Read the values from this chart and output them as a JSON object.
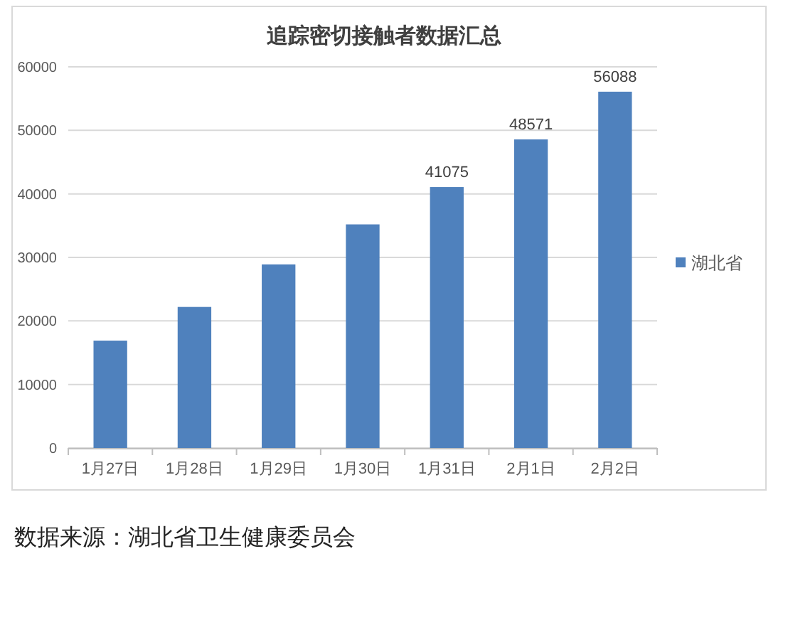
{
  "chart_data": {
    "type": "bar",
    "title": "追踪密切接触者数据汇总",
    "categories": [
      "1月27日",
      "1月28日",
      "1月29日",
      "1月30日",
      "1月31日",
      "2月1日",
      "2月2日"
    ],
    "series": [
      {
        "name": "湖北省",
        "color": "#4f81bd",
        "values": [
          16900,
          22200,
          28900,
          35200,
          41075,
          48571,
          56088
        ],
        "value_labels": [
          null,
          null,
          null,
          null,
          "41075",
          "48571",
          "56088"
        ]
      }
    ],
    "ylim": [
      0,
      60000
    ],
    "yticks": [
      0,
      10000,
      20000,
      30000,
      40000,
      50000,
      60000
    ],
    "grid": "y",
    "legend": "right",
    "annotations": [
      "数据来源：湖北省卫生健康委员会"
    ]
  }
}
